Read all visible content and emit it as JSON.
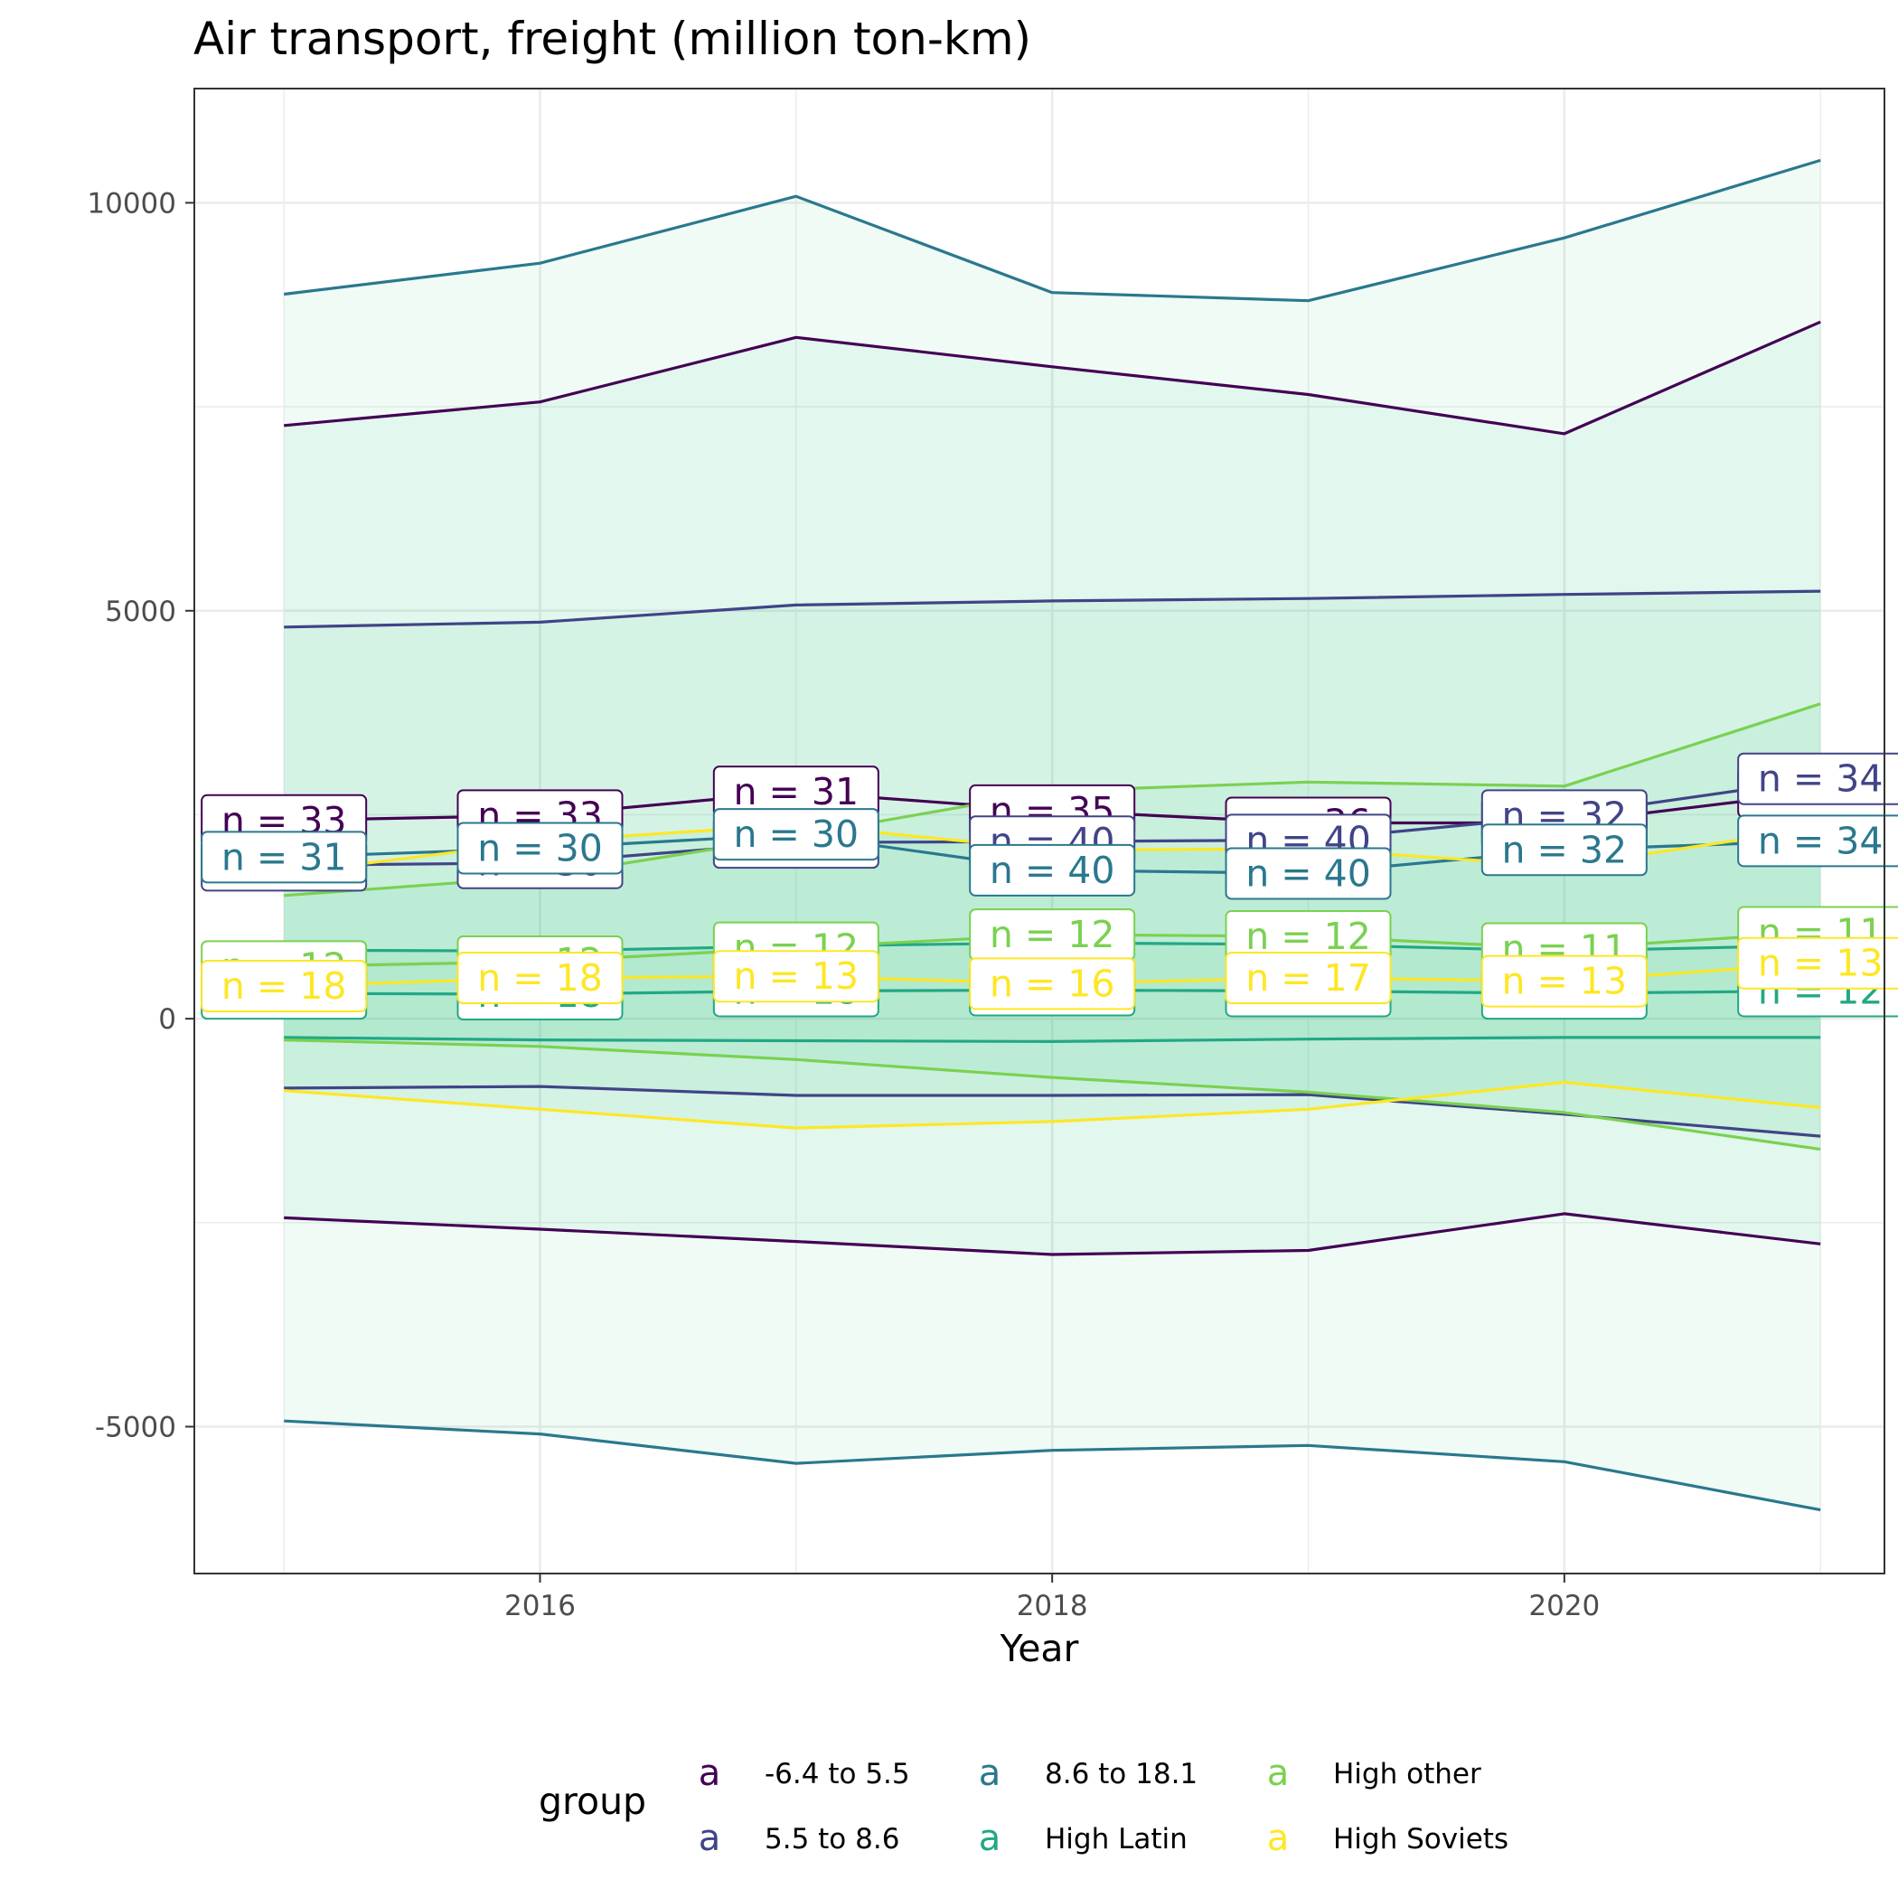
{
  "chart_data": {
    "type": "line",
    "title": "Air transport, freight (million ton-km)",
    "xlabel": "Year",
    "ylabel": "",
    "xlim": [
      2014.65,
      2021.25
    ],
    "ylim": [
      -6800,
      11400
    ],
    "x_ticks": [
      2016,
      2018,
      2020
    ],
    "y_ticks": [
      -5000,
      0,
      5000,
      10000
    ],
    "y_tick_labels": [
      "-5000",
      "0",
      "5000",
      "10000"
    ],
    "grid": true,
    "legend_title": "group",
    "legend_position": "bottom",
    "legend_glyph": "a",
    "x": [
      2015,
      2016,
      2017,
      2018,
      2019,
      2020,
      2021
    ],
    "series": [
      {
        "name": "-6.4 to 5.5",
        "color": "#440154",
        "mean": [
          2430,
          2490,
          2780,
          2550,
          2400,
          2400,
          2780
        ],
        "upper": [
          7270,
          7560,
          8350,
          7990,
          7650,
          7170,
          8540
        ],
        "lower": [
          -2440,
          -2580,
          -2730,
          -2890,
          -2840,
          -2390,
          -2760
        ],
        "n": [
          33,
          33,
          31,
          35,
          36,
          29,
          29
        ]
      },
      {
        "name": "5.5 to 8.6",
        "color": "#414487",
        "mean": [
          1880,
          1910,
          2160,
          2170,
          2190,
          2490,
          2940
        ],
        "upper": [
          4800,
          4860,
          5070,
          5120,
          5150,
          5200,
          5240
        ],
        "lower": [
          -850,
          -830,
          -940,
          -940,
          -930,
          -1170,
          -1440
        ],
        "n": [
          31,
          30,
          30,
          40,
          40,
          32,
          34
        ]
      },
      {
        "name": "8.6 to 18.1",
        "color": "#2a788e",
        "mean": [
          1980,
          2090,
          2260,
          1820,
          1780,
          2070,
          2180
        ],
        "upper": [
          8880,
          9260,
          10080,
          8900,
          8800,
          9570,
          10520
        ],
        "lower": [
          -4930,
          -5090,
          -5450,
          -5290,
          -5230,
          -5430,
          -6020
        ],
        "n": [
          31,
          30,
          30,
          40,
          40,
          32,
          34
        ]
      },
      {
        "name": "High Latin",
        "color": "#22a884",
        "mean": [
          310,
          300,
          340,
          350,
          340,
          310,
          340
        ],
        "upper": [
          840,
          830,
          890,
          930,
          910,
          830,
          900
        ],
        "lower": [
          -230,
          -260,
          -270,
          -280,
          -250,
          -230,
          -230
        ],
        "n": [
          18,
          18,
          18,
          18,
          18,
          18,
          12
        ]
      },
      {
        "name": "High other",
        "color": "#7ad151",
        "mean": [
          640,
          700,
          870,
          1030,
          1010,
          860,
          1060
        ],
        "upper": [
          1510,
          1740,
          2240,
          2790,
          2900,
          2850,
          3860
        ],
        "lower": [
          -260,
          -340,
          -500,
          -720,
          -900,
          -1150,
          -1600
        ],
        "n": [
          12,
          12,
          12,
          12,
          12,
          11,
          11
        ]
      },
      {
        "name": "High Soviets",
        "color": "#fde725",
        "mean": [
          400,
          500,
          520,
          430,
          500,
          460,
          680
        ],
        "upper": [
          1780,
          2170,
          2380,
          2070,
          2080,
          1870,
          2340
        ],
        "lower": [
          -880,
          -1110,
          -1340,
          -1260,
          -1110,
          -780,
          -1090
        ],
        "n": [
          18,
          18,
          13,
          16,
          17,
          13,
          13
        ]
      }
    ]
  }
}
